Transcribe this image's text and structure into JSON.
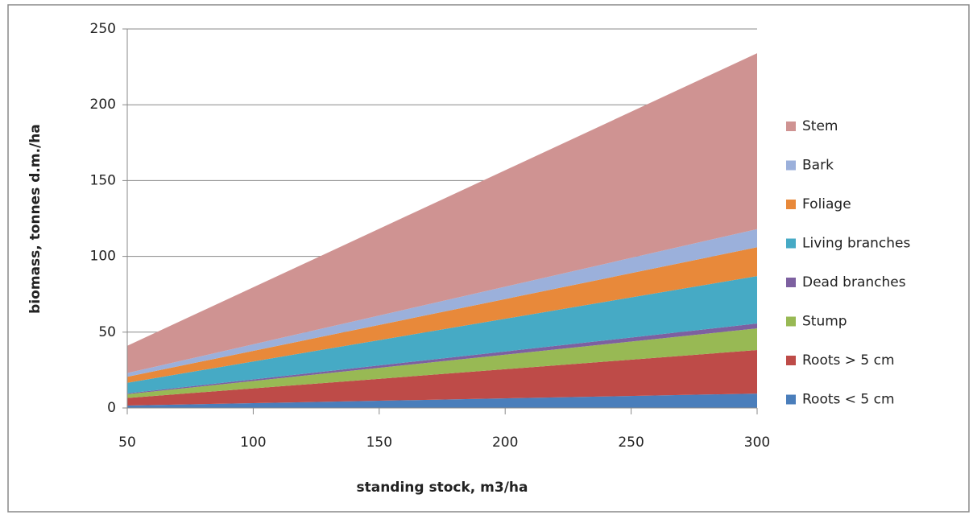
{
  "chart_data": {
    "type": "stacked_area",
    "x_label": "standing stock, m3/ha",
    "y_label": "biomass, tonnes d.m./ha",
    "x": [
      50,
      300
    ],
    "xlim": [
      50,
      300
    ],
    "xticks": [
      50,
      100,
      150,
      200,
      250,
      300
    ],
    "ylim": [
      0,
      250
    ],
    "yticks": [
      0,
      50,
      100,
      150,
      200,
      250
    ],
    "grid": true,
    "legend": "right",
    "series": [
      {
        "name": "Roots < 5 cm",
        "color": "#4a7ebb",
        "values": [
          1.6,
          9.5
        ]
      },
      {
        "name": "Roots > 5 cm",
        "color": "#be4b48",
        "values": [
          5,
          28.7
        ]
      },
      {
        "name": "Stump",
        "color": "#98b954",
        "values": [
          2.5,
          14.3
        ]
      },
      {
        "name": "Dead branches",
        "color": "#7d60a0",
        "values": [
          0.5,
          3.2
        ]
      },
      {
        "name": "Living branches",
        "color": "#46aac5",
        "values": [
          7,
          31.3
        ]
      },
      {
        "name": "Foliage",
        "color": "#e8893a",
        "values": [
          4,
          19
        ]
      },
      {
        "name": "Bark",
        "color": "#9bb0db",
        "values": [
          2.4,
          12
        ]
      },
      {
        "name": "Stem",
        "color": "#cf9392",
        "values": [
          18,
          116
        ]
      }
    ]
  }
}
